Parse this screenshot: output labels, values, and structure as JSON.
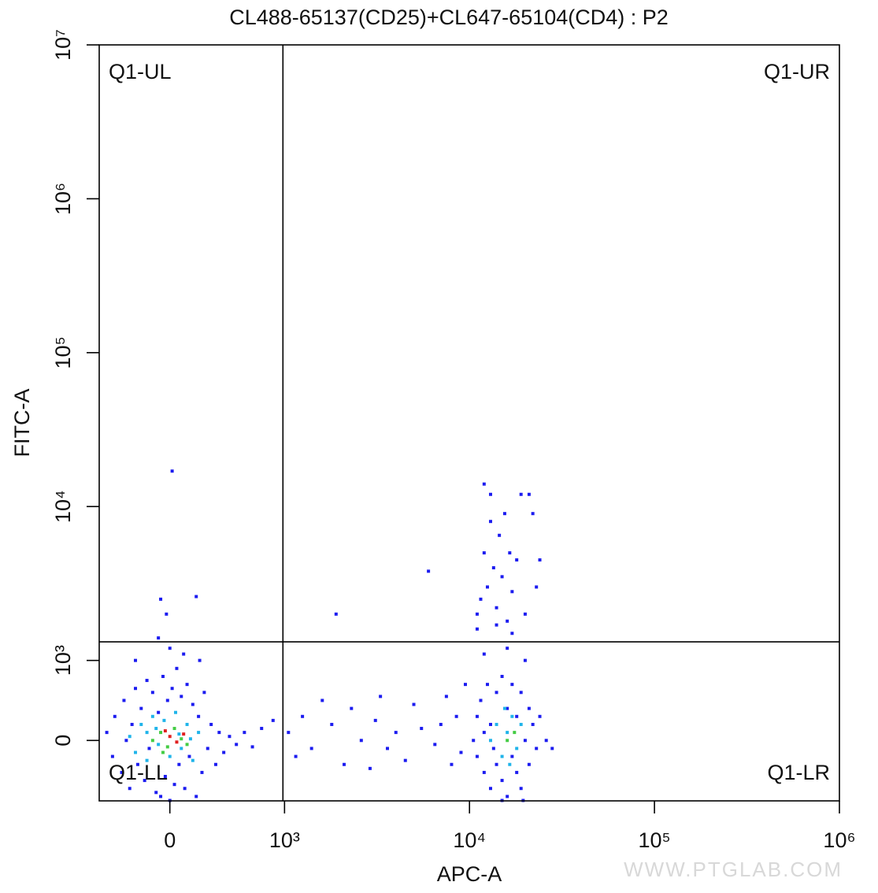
{
  "chart_data": {
    "type": "scatter",
    "title": "CL488-65137(CD25)+CL647-65104(CD4) : P2",
    "x_label": "APC-A",
    "y_label": "FITC-A",
    "watermark": "WWW.PTGLAB.COM",
    "xscale": "biexponential",
    "yscale": "biexponential",
    "xlim": [
      -616,
      1000000
    ],
    "ylim": [
      -755,
      10000000
    ],
    "xticks": [
      0,
      {
        "value": 1000,
        "label": "10³"
      },
      {
        "value": 10000,
        "label": "10⁴"
      },
      {
        "value": 100000,
        "label": "10⁵"
      },
      {
        "value": 1000000,
        "label": "10⁶"
      }
    ],
    "yticks": [
      0,
      {
        "value": 1000,
        "label": "10³"
      },
      {
        "value": 10000,
        "label": "10⁴"
      },
      {
        "value": 100000,
        "label": "10⁵"
      },
      {
        "value": 1000000,
        "label": "10⁶"
      },
      {
        "value": 10000000,
        "label": "10⁷"
      }
    ],
    "gates": {
      "x": 986,
      "y": 1320
    },
    "quadrant_labels": [
      "Q1-UL",
      "Q1-UR",
      "Q1-LL",
      "Q1-LR"
    ],
    "series": [
      {
        "color": "#1c1cf0",
        "x": [
          -550,
          -500,
          -480,
          -420,
          -400,
          -380,
          -350,
          -330,
          -300,
          -280,
          -250,
          -220,
          -200,
          -180,
          -150,
          -120,
          -100,
          -80,
          -60,
          -40,
          -20,
          0,
          20,
          40,
          60,
          80,
          100,
          130,
          150,
          170,
          200,
          230,
          250,
          280,
          300,
          330,
          360,
          400,
          430,
          470,
          520,
          580,
          650,
          720,
          800,
          900,
          -300,
          0,
          120,
          260,
          -100,
          20,
          -80,
          230,
          -30,
          1050,
          1150,
          1250,
          1400,
          1600,
          1800,
          1900,
          2100,
          2300,
          2600,
          2900,
          3100,
          3300,
          3600,
          4000,
          4500,
          5000,
          5500,
          6000,
          6500,
          7000,
          7500,
          8000,
          8500,
          9000,
          9500,
          10500,
          11000,
          11000,
          11500,
          12000,
          12000,
          12500,
          13000,
          13000,
          13500,
          14000,
          14000,
          15000,
          15000,
          16000,
          16000,
          17000,
          17000,
          18000,
          18000,
          19000,
          19000,
          20000,
          21000,
          21000,
          22000,
          23000,
          24000,
          26000,
          28000,
          15000,
          19500,
          12000,
          16000,
          20000,
          11000,
          11500,
          12000,
          12000,
          12500,
          13000,
          13500,
          14000,
          14500,
          15000,
          15500,
          16000,
          16500,
          17000,
          18000,
          19000,
          20000,
          21000,
          22000,
          23000,
          24000,
          13000,
          11000,
          14000,
          17000
        ],
        "y": [
          100,
          -200,
          300,
          -400,
          500,
          0,
          -600,
          200,
          650,
          -300,
          400,
          -500,
          750,
          -100,
          600,
          -650,
          350,
          -700,
          800,
          -450,
          500,
          -750,
          650,
          -550,
          900,
          -300,
          550,
          -600,
          700,
          -200,
          450,
          -700,
          300,
          -400,
          600,
          -100,
          200,
          -300,
          100,
          -150,
          50,
          -50,
          100,
          -80,
          150,
          250,
          1000,
          1200,
          1100,
          1000,
          1400,
          17000,
          2500,
          2600,
          2000,
          100,
          -200,
          300,
          -100,
          500,
          200,
          2000,
          -300,
          400,
          0,
          -350,
          250,
          550,
          -100,
          100,
          -250,
          450,
          150,
          3800,
          -50,
          200,
          550,
          -300,
          300,
          -150,
          700,
          0,
          -200,
          300,
          500,
          -400,
          100,
          700,
          -600,
          200,
          -100,
          600,
          -300,
          800,
          -500,
          -700,
          400,
          -200,
          700,
          -400,
          300,
          600,
          -600,
          0,
          400,
          -300,
          200,
          -100,
          300,
          0,
          -100,
          -750,
          -750,
          1100,
          1200,
          1000,
          1600,
          2500,
          5000,
          14000,
          3000,
          8000,
          4000,
          2200,
          6500,
          3500,
          9000,
          1800,
          5000,
          2800,
          4500,
          12000,
          2000,
          12000,
          9000,
          3000,
          4500,
          12000,
          2000,
          1700,
          1500
        ]
      },
      {
        "color": "#1fb4ea",
        "x": [
          -350,
          -300,
          -250,
          -200,
          -150,
          -100,
          -50,
          0,
          50,
          100,
          150,
          200,
          250,
          -200,
          -120,
          80,
          180,
          13000,
          14000,
          15000,
          16000,
          17000,
          18000,
          19000,
          15500,
          16500
        ],
        "y": [
          50,
          -150,
          200,
          -250,
          300,
          -50,
          250,
          -200,
          350,
          -100,
          200,
          -250,
          100,
          100,
          150,
          80,
          20,
          0,
          200,
          -200,
          100,
          300,
          -100,
          200,
          400,
          -300
        ]
      },
      {
        "color": "#44cc44",
        "x": [
          -150,
          -80,
          -20,
          40,
          100,
          -60,
          150,
          16000,
          17500
        ],
        "y": [
          0,
          100,
          -80,
          150,
          20,
          -150,
          -50,
          0,
          100
        ]
      },
      {
        "color": "#e02020",
        "x": [
          0,
          60,
          -40,
          120
        ],
        "y": [
          50,
          -20,
          120,
          80
        ]
      }
    ]
  }
}
